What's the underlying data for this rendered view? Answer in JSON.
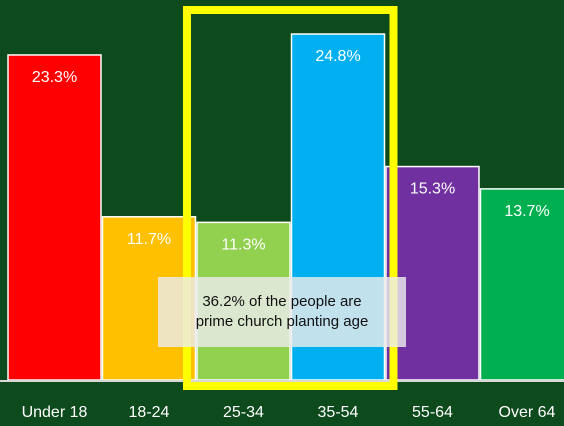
{
  "chart_data": {
    "type": "bar",
    "categories": [
      "Under 18",
      "18-24",
      "25-34",
      "35-54",
      "55-64",
      "Over 64"
    ],
    "values": [
      23.3,
      11.7,
      11.3,
      24.8,
      15.3,
      13.7
    ],
    "data_labels": [
      "23.3%",
      "11.7%",
      "11.3%",
      "24.8%",
      "15.3%",
      "13.7%"
    ],
    "colors": [
      "#ff0000",
      "#ffc000",
      "#92d050",
      "#00b0f0",
      "#7030a0",
      "#00b050"
    ],
    "highlight": {
      "categories": [
        "25-34",
        "35-54"
      ],
      "color": "#ffff00"
    },
    "title": "",
    "xlabel": "",
    "ylabel": "",
    "grid": false,
    "background": "#0d4a1c"
  },
  "annotation": {
    "line1": "36.2% of the people are",
    "line2": "prime church planting age"
  }
}
